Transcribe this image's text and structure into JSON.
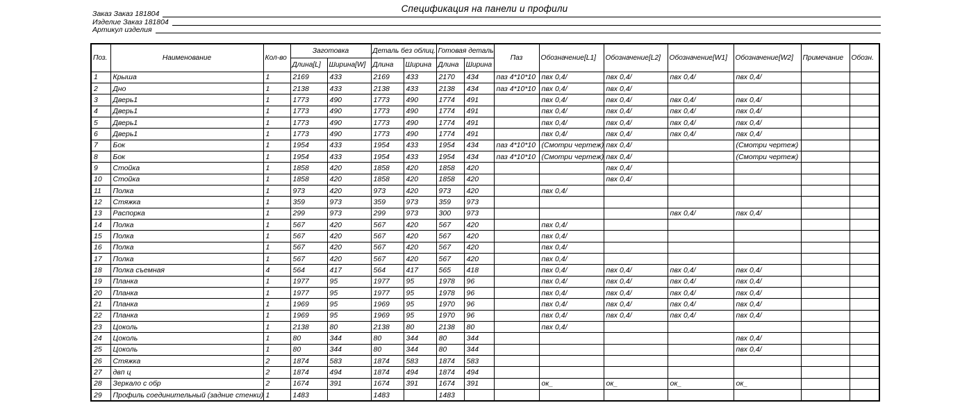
{
  "title": "Спецификация на панели и профили",
  "meta_lines": [
    "Заказ Заказ 181804",
    "Изделие Заказ 181804",
    "Артикул изделия"
  ],
  "table": {
    "header_groups": [
      {
        "label": "Поз."
      },
      {
        "label": "Наименование"
      },
      {
        "label": "Кол-во"
      },
      {
        "label": "Заготовка",
        "children": [
          "Длина[L]",
          "Ширина[W]"
        ]
      },
      {
        "label": "Деталь без облиц.",
        "children": [
          "Длина",
          "Ширина"
        ]
      },
      {
        "label": "Готовая деталь",
        "children": [
          "Длина",
          "Ширина"
        ]
      },
      {
        "label": "Паз"
      },
      {
        "label": "Обозначение[L1]"
      },
      {
        "label": "Обозначение[L2]"
      },
      {
        "label": "Обозначение[W1]"
      },
      {
        "label": "Обозначение[W2]"
      },
      {
        "label": "Примечание"
      },
      {
        "label": "Обозн."
      }
    ],
    "column_keys": [
      "pos",
      "name",
      "qty",
      "blank-length",
      "blank-width",
      "raw-length",
      "raw-width",
      "final-length",
      "final-width",
      "groove",
      "mark-l1",
      "mark-l2",
      "mark-w1",
      "mark-w2",
      "note",
      "sign"
    ],
    "rows": [
      [
        "1",
        "Крыша",
        "1",
        "2169",
        "433",
        "2169",
        "433",
        "2170",
        "434",
        "паз 4*10*10",
        "пвх 0,4/",
        "пвх 0,4/",
        "пвх 0,4/",
        "пвх 0,4/",
        "",
        ""
      ],
      [
        "2",
        "Дно",
        "1",
        "2138",
        "433",
        "2138",
        "433",
        "2138",
        "434",
        "паз 4*10*10",
        "пвх 0,4/",
        "пвх 0,4/",
        "",
        "",
        "",
        ""
      ],
      [
        "3",
        "Дверь1",
        "1",
        "1773",
        "490",
        "1773",
        "490",
        "1774",
        "491",
        "",
        "пвх 0,4/",
        "пвх 0,4/",
        "пвх 0,4/",
        "пвх 0,4/",
        "",
        ""
      ],
      [
        "4",
        "Дверь1",
        "1",
        "1773",
        "490",
        "1773",
        "490",
        "1774",
        "491",
        "",
        "пвх 0,4/",
        "пвх 0,4/",
        "пвх 0,4/",
        "пвх 0,4/",
        "",
        ""
      ],
      [
        "5",
        "Дверь1",
        "1",
        "1773",
        "490",
        "1773",
        "490",
        "1774",
        "491",
        "",
        "пвх 0,4/",
        "пвх 0,4/",
        "пвх 0,4/",
        "пвх 0,4/",
        "",
        ""
      ],
      [
        "6",
        "Дверь1",
        "1",
        "1773",
        "490",
        "1773",
        "490",
        "1774",
        "491",
        "",
        "пвх 0,4/",
        "пвх 0,4/",
        "пвх 0,4/",
        "пвх 0,4/",
        "",
        ""
      ],
      [
        "7",
        "Бок",
        "1",
        "1954",
        "433",
        "1954",
        "433",
        "1954",
        "434",
        "паз 4*10*10",
        "(Смотри чертеж)",
        "пвх 0,4/",
        "",
        "(Смотри чертеж)",
        "",
        ""
      ],
      [
        "8",
        "Бок",
        "1",
        "1954",
        "433",
        "1954",
        "433",
        "1954",
        "434",
        "паз 4*10*10",
        "(Смотри чертеж)",
        "пвх 0,4/",
        "",
        "(Смотри чертеж)",
        "",
        ""
      ],
      [
        "9",
        "Стойка",
        "1",
        "1858",
        "420",
        "1858",
        "420",
        "1858",
        "420",
        "",
        "",
        "пвх 0,4/",
        "",
        "",
        "",
        ""
      ],
      [
        "10",
        "Стойка",
        "1",
        "1858",
        "420",
        "1858",
        "420",
        "1858",
        "420",
        "",
        "",
        "пвх 0,4/",
        "",
        "",
        "",
        ""
      ],
      [
        "11",
        "Полка",
        "1",
        "973",
        "420",
        "973",
        "420",
        "973",
        "420",
        "",
        "пвх 0,4/",
        "",
        "",
        "",
        "",
        ""
      ],
      [
        "12",
        "Стяжка",
        "1",
        "359",
        "973",
        "359",
        "973",
        "359",
        "973",
        "",
        "",
        "",
        "",
        "",
        "",
        ""
      ],
      [
        "13",
        "Распорка",
        "1",
        "299",
        "973",
        "299",
        "973",
        "300",
        "973",
        "",
        "",
        "",
        "пвх 0,4/",
        "пвх 0,4/",
        "",
        ""
      ],
      [
        "14",
        "Полка",
        "1",
        "567",
        "420",
        "567",
        "420",
        "567",
        "420",
        "",
        "пвх 0,4/",
        "",
        "",
        "",
        "",
        ""
      ],
      [
        "15",
        "Полка",
        "1",
        "567",
        "420",
        "567",
        "420",
        "567",
        "420",
        "",
        "пвх 0,4/",
        "",
        "",
        "",
        "",
        ""
      ],
      [
        "16",
        "Полка",
        "1",
        "567",
        "420",
        "567",
        "420",
        "567",
        "420",
        "",
        "пвх 0,4/",
        "",
        "",
        "",
        "",
        ""
      ],
      [
        "17",
        "Полка",
        "1",
        "567",
        "420",
        "567",
        "420",
        "567",
        "420",
        "",
        "пвх 0,4/",
        "",
        "",
        "",
        "",
        ""
      ],
      [
        "18",
        "Полка съемная",
        "4",
        "564",
        "417",
        "564",
        "417",
        "565",
        "418",
        "",
        "пвх 0,4/",
        "пвх 0,4/",
        "пвх 0,4/",
        "пвх 0,4/",
        "",
        ""
      ],
      [
        "19",
        "Планка",
        "1",
        "1977",
        "95",
        "1977",
        "95",
        "1978",
        "96",
        "",
        "пвх 0,4/",
        "пвх 0,4/",
        "пвх 0,4/",
        "пвх 0,4/",
        "",
        ""
      ],
      [
        "20",
        "Планка",
        "1",
        "1977",
        "95",
        "1977",
        "95",
        "1978",
        "96",
        "",
        "пвх 0,4/",
        "пвх 0,4/",
        "пвх 0,4/",
        "пвх 0,4/",
        "",
        ""
      ],
      [
        "21",
        "Планка",
        "1",
        "1969",
        "95",
        "1969",
        "95",
        "1970",
        "96",
        "",
        "пвх 0,4/",
        "пвх 0,4/",
        "пвх 0,4/",
        "пвх 0,4/",
        "",
        ""
      ],
      [
        "22",
        "Планка",
        "1",
        "1969",
        "95",
        "1969",
        "95",
        "1970",
        "96",
        "",
        "пвх 0,4/",
        "пвх 0,4/",
        "пвх 0,4/",
        "пвх 0,4/",
        "",
        ""
      ],
      [
        "23",
        "Цоколь",
        "1",
        "2138",
        "80",
        "2138",
        "80",
        "2138",
        "80",
        "",
        "пвх 0,4/",
        "",
        "",
        "",
        "",
        ""
      ],
      [
        "24",
        "Цоколь",
        "1",
        "80",
        "344",
        "80",
        "344",
        "80",
        "344",
        "",
        "",
        "",
        "",
        "пвх 0,4/",
        "",
        ""
      ],
      [
        "25",
        "Цоколь",
        "1",
        "80",
        "344",
        "80",
        "344",
        "80",
        "344",
        "",
        "",
        "",
        "",
        "пвх 0,4/",
        "",
        ""
      ],
      [
        "26",
        "Стяжка",
        "2",
        "1874",
        "583",
        "1874",
        "583",
        "1874",
        "583",
        "",
        "",
        "",
        "",
        "",
        "",
        ""
      ],
      [
        "27",
        "двп ц",
        "2",
        "1874",
        "494",
        "1874",
        "494",
        "1874",
        "494",
        "",
        "",
        "",
        "",
        "",
        "",
        ""
      ],
      [
        "28",
        "Зеркало с обр",
        "2",
        "1674",
        "391",
        "1674",
        "391",
        "1674",
        "391",
        "",
        "ок_",
        "ок_",
        "ок_",
        "ок_",
        "",
        ""
      ],
      [
        "29",
        "Профиль соединительный (задние стенки)",
        "1",
        "1483",
        "",
        "1483",
        "",
        "1483",
        "",
        "",
        "",
        "",
        "",
        "",
        "",
        ""
      ]
    ]
  }
}
